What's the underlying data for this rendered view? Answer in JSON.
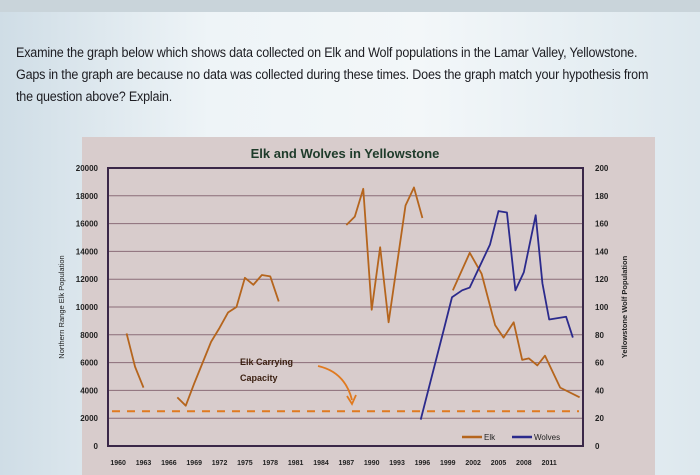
{
  "prompt": "Examine the graph below which shows data collected on Elk and Wolf populations in the Lamar Valley, Yellowstone. Gaps in the graph are because no data was collected during these times. Does the graph match your hypothesis from the question above? Explain.",
  "chart_data": {
    "type": "line",
    "title": "Elk and Wolves in Yellowstone",
    "ylabel": "Northern Range Elk Population",
    "y2label": "Yellowstone Wolf Population",
    "xlim": [
      1958.8,
      2015
    ],
    "ylim": [
      0,
      20000
    ],
    "y2lim": [
      0,
      200
    ],
    "grid": true,
    "legend_placement": "bottom-right",
    "x_ticks": [
      "1960",
      "1963",
      "1966",
      "1969",
      "1972",
      "1975",
      "1978",
      "1981",
      "1984",
      "1987",
      "1990",
      "1993",
      "1996",
      "1999",
      "2002",
      "2005",
      "2008",
      "2011"
    ],
    "y_ticks": [
      "0",
      "2000",
      "4000",
      "6000",
      "8000",
      "10000",
      "12000",
      "14000",
      "16000",
      "18000",
      "20000"
    ],
    "y2_ticks": [
      "0",
      "20",
      "40",
      "60",
      "80",
      "100",
      "120",
      "140",
      "160",
      "180",
      "200"
    ],
    "annotation": {
      "text_line1": "Elk Carrying",
      "text_line2": "Capacity",
      "carrying_capacity": 2500
    },
    "series": [
      {
        "name": "Elk",
        "axis": "left",
        "color": "#b5651d",
        "segments": [
          [
            [
              1961,
              8100
            ],
            [
              1962,
              5700
            ],
            [
              1963,
              4200
            ]
          ],
          [
            [
              1967,
              3500
            ],
            [
              1968,
              2900
            ],
            [
              1969,
              4500
            ],
            [
              1970,
              6000
            ],
            [
              1971,
              7500
            ],
            [
              1972,
              8500
            ],
            [
              1973,
              9600
            ],
            [
              1974,
              10000
            ],
            [
              1975,
              12100
            ],
            [
              1976,
              11600
            ],
            [
              1977,
              12300
            ],
            [
              1978,
              12200
            ],
            [
              1979,
              10400
            ]
          ],
          [
            [
              1987,
              15900
            ],
            [
              1988,
              16500
            ],
            [
              1989,
              18500
            ],
            [
              1990,
              9800
            ],
            [
              1991,
              14300
            ],
            [
              1992,
              8900
            ],
            [
              1994,
              17300
            ],
            [
              1995,
              18600
            ],
            [
              1996,
              16400
            ]
          ],
          [
            [
              1999.6,
              11200
            ],
            [
              2001.6,
              13900
            ],
            [
              2003,
              12400
            ],
            [
              2004.6,
              8700
            ],
            [
              2005.6,
              7800
            ],
            [
              2006.8,
              8900
            ],
            [
              2007.8,
              6200
            ],
            [
              2008.6,
              6300
            ],
            [
              2009.6,
              5800
            ],
            [
              2010.5,
              6500
            ],
            [
              2012.3,
              4200
            ],
            [
              2014.6,
              3500
            ]
          ]
        ]
      },
      {
        "name": "Wolves",
        "axis": "right",
        "color": "#2b2a8c",
        "segments": [
          [
            [
              1995.8,
              19
            ],
            [
              1998.5,
              83
            ],
            [
              1999.5,
              107
            ],
            [
              2000.7,
              112
            ],
            [
              2001.6,
              114
            ],
            [
              2004,
              145
            ],
            [
              2005,
              169
            ],
            [
              2006,
              168
            ],
            [
              2007,
              112
            ],
            [
              2008,
              125
            ],
            [
              2009.4,
              166
            ],
            [
              2010.2,
              117
            ],
            [
              2011,
              91
            ],
            [
              2013,
              93
            ],
            [
              2013.8,
              78
            ]
          ]
        ]
      }
    ],
    "colors": {
      "carrying_capacity_line": "#e07a1f",
      "panel": "#d8cccc",
      "title": "#1e3b2a"
    }
  }
}
